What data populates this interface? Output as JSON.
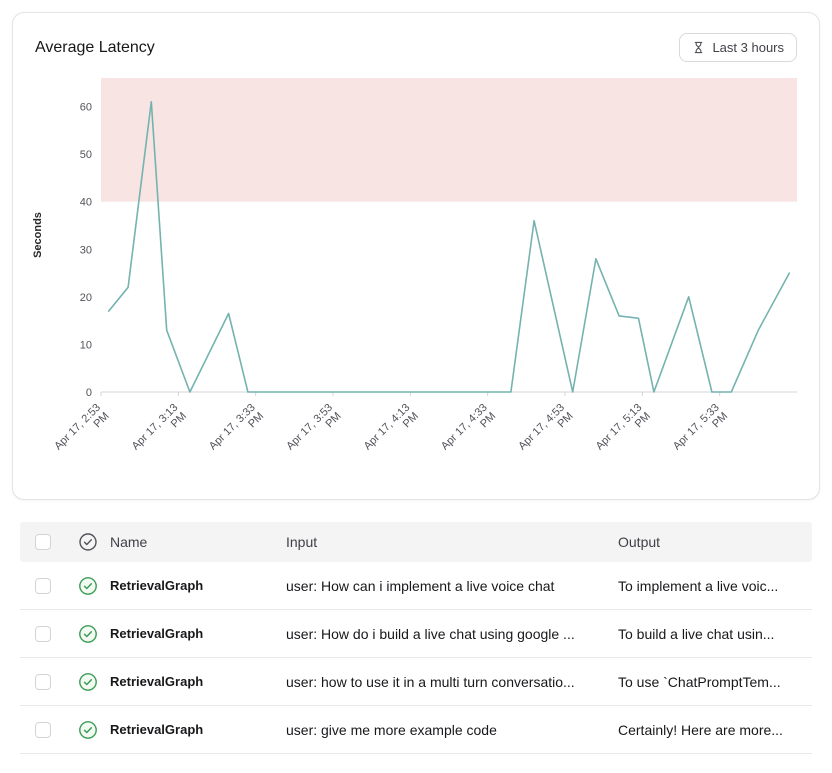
{
  "latency_card": {
    "title": "Average Latency",
    "time_range_label": "Last 3 hours"
  },
  "colors": {
    "line": "#74b3b0",
    "threshold_band": "#f8e4e2",
    "success": "#3f9d56",
    "axis": "#d4d4d8"
  },
  "chart_data": {
    "type": "line",
    "title": "Average Latency",
    "ylabel": "Seconds",
    "xlabel": "",
    "grid": false,
    "legend": false,
    "ylim": [
      0,
      66
    ],
    "y_ticks": [
      0,
      10,
      20,
      30,
      40,
      50,
      60
    ],
    "x_unit": "minutes after 2:53 PM",
    "x_range": [
      0,
      180
    ],
    "x_ticks": [
      {
        "t": 0,
        "label": "Apr 17, 2:53 PM"
      },
      {
        "t": 20,
        "label": "Apr 17, 3:13 PM"
      },
      {
        "t": 40,
        "label": "Apr 17, 3:33 PM"
      },
      {
        "t": 60,
        "label": "Apr 17, 3:53 PM"
      },
      {
        "t": 80,
        "label": "Apr 17, 4:13 PM"
      },
      {
        "t": 100,
        "label": "Apr 17, 4:33 PM"
      },
      {
        "t": 120,
        "label": "Apr 17, 4:53 PM"
      },
      {
        "t": 140,
        "label": "Apr 17, 5:13 PM"
      },
      {
        "t": 160,
        "label": "Apr 17, 5:33 PM"
      }
    ],
    "threshold_band": {
      "from": 40,
      "to": 66,
      "color": "#f8e4e2"
    },
    "line_color": "#74b3b0",
    "points": [
      [
        2,
        17
      ],
      [
        7,
        22
      ],
      [
        13,
        61
      ],
      [
        17,
        13
      ],
      [
        23,
        0
      ],
      [
        33,
        16.5
      ],
      [
        38,
        0
      ],
      [
        106,
        0
      ],
      [
        112,
        36
      ],
      [
        122,
        0
      ],
      [
        128,
        28
      ],
      [
        134,
        16
      ],
      [
        139,
        15.5
      ],
      [
        143,
        0
      ],
      [
        152,
        20
      ],
      [
        158,
        0
      ],
      [
        163,
        0
      ],
      [
        170,
        13
      ],
      [
        178,
        25
      ]
    ]
  },
  "runs_table": {
    "columns": {
      "name": "Name",
      "input": "Input",
      "output": "Output"
    },
    "rows": [
      {
        "status": "success",
        "name": "RetrievalGraph",
        "input": "user: How can i implement a live voice chat",
        "output": "To implement a live voic..."
      },
      {
        "status": "success",
        "name": "RetrievalGraph",
        "input": "user: How do i build a live chat using google ...",
        "output": "To build a live chat usin..."
      },
      {
        "status": "success",
        "name": "RetrievalGraph",
        "input": "user: how to use it in a multi turn conversatio...",
        "output": "To use `ChatPromptTem..."
      },
      {
        "status": "success",
        "name": "RetrievalGraph",
        "input": "user: give me more example code",
        "output": "Certainly! Here are more..."
      }
    ]
  }
}
